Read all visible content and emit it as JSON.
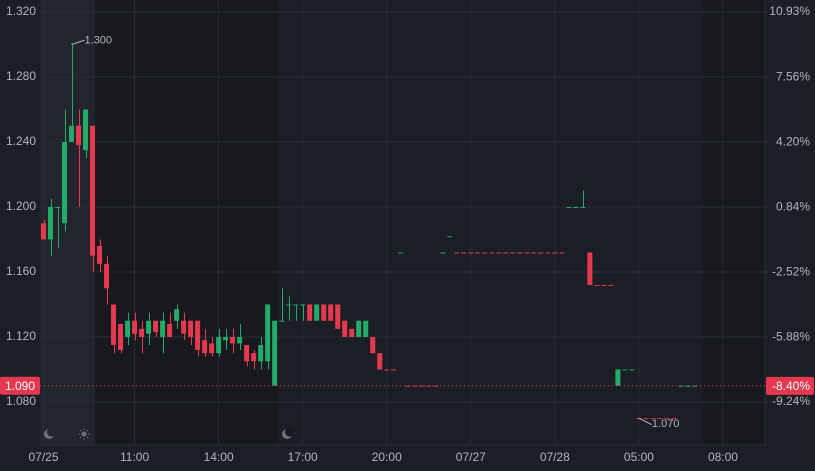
{
  "chart_data": {
    "type": "candlestick",
    "x": [
      0,
      1,
      2,
      3,
      4,
      5,
      6,
      7,
      8,
      9,
      10,
      11,
      12,
      13,
      14,
      15,
      16,
      17,
      18,
      19,
      20,
      21,
      22,
      23,
      24,
      25,
      26,
      27,
      28,
      29,
      30,
      31,
      32,
      33,
      34,
      35,
      36,
      37,
      38,
      39,
      40,
      41,
      42,
      43,
      44,
      45,
      46,
      47,
      48,
      49,
      50,
      51,
      52,
      53,
      54,
      55,
      56,
      57,
      58,
      59,
      60,
      61,
      62,
      63,
      64,
      65,
      66,
      67,
      68,
      69,
      70,
      71,
      72,
      73,
      74,
      75,
      76,
      77,
      78,
      79,
      80,
      81,
      82,
      83,
      84,
      85,
      86,
      87,
      88,
      89,
      90,
      91,
      92,
      93
    ],
    "open": [
      1.19,
      1.18,
      1.2,
      1.19,
      1.24,
      1.25,
      1.235,
      1.25,
      1.176,
      1.165,
      1.14,
      1.128,
      1.12,
      1.13,
      1.125,
      1.122,
      1.13,
      1.12,
      1.128,
      1.13,
      1.13,
      1.13,
      1.13,
      1.118,
      1.116,
      1.11,
      1.118,
      1.12,
      1.116,
      1.115,
      1.11,
      1.105,
      1.105,
      1.09,
      1.13,
      1.14,
      1.14,
      1.14,
      1.14,
      1.13,
      1.14,
      1.14,
      1.14,
      1.13,
      1.125,
      1.12,
      1.12,
      1.12,
      1.11,
      1.1,
      1.1,
      1.172,
      1.09,
      1.09,
      1.09,
      1.09,
      1.09,
      1.172,
      1.182,
      1.172,
      1.172,
      1.172,
      1.172,
      1.172,
      1.172,
      1.172,
      1.172,
      1.172,
      1.172,
      1.172,
      1.172,
      1.172,
      1.172,
      1.172,
      1.172,
      1.2,
      1.2,
      1.2,
      1.172,
      1.152,
      1.152,
      1.152,
      1.09,
      1.1,
      1.1,
      1.07,
      1.07,
      1.07,
      1.07,
      1.07,
      1.07,
      1.09,
      1.09,
      1.09
    ],
    "high": [
      1.192,
      1.205,
      1.2,
      1.26,
      1.3,
      1.26,
      1.26,
      1.25,
      1.18,
      1.17,
      1.14,
      1.128,
      1.135,
      1.135,
      1.13,
      1.135,
      1.13,
      1.135,
      1.135,
      1.14,
      1.135,
      1.13,
      1.13,
      1.125,
      1.12,
      1.125,
      1.125,
      1.125,
      1.128,
      1.115,
      1.112,
      1.12,
      1.14,
      1.13,
      1.15,
      1.145,
      1.14,
      1.14,
      1.14,
      1.14,
      1.14,
      1.14,
      1.14,
      1.13,
      1.125,
      1.13,
      1.13,
      1.12,
      1.11,
      1.1,
      1.1,
      1.172,
      1.09,
      1.09,
      1.09,
      1.09,
      1.09,
      1.172,
      1.182,
      1.172,
      1.172,
      1.172,
      1.172,
      1.172,
      1.172,
      1.172,
      1.172,
      1.172,
      1.172,
      1.172,
      1.172,
      1.172,
      1.172,
      1.172,
      1.172,
      1.2,
      1.2,
      1.21,
      1.172,
      1.152,
      1.152,
      1.152,
      1.1,
      1.1,
      1.1,
      1.07,
      1.07,
      1.07,
      1.07,
      1.07,
      1.07,
      1.09,
      1.09,
      1.09
    ],
    "low": [
      1.18,
      1.17,
      1.175,
      1.185,
      1.24,
      1.2,
      1.23,
      1.16,
      1.16,
      1.14,
      1.11,
      1.11,
      1.115,
      1.118,
      1.11,
      1.115,
      1.12,
      1.11,
      1.12,
      1.125,
      1.118,
      1.115,
      1.108,
      1.108,
      1.108,
      1.108,
      1.112,
      1.11,
      1.112,
      1.102,
      1.1,
      1.1,
      1.1,
      1.09,
      1.13,
      1.13,
      1.13,
      1.13,
      1.13,
      1.13,
      1.13,
      1.13,
      1.125,
      1.12,
      1.12,
      1.12,
      1.12,
      1.11,
      1.1,
      1.1,
      1.1,
      1.172,
      1.09,
      1.09,
      1.09,
      1.09,
      1.09,
      1.172,
      1.182,
      1.172,
      1.172,
      1.172,
      1.172,
      1.172,
      1.172,
      1.172,
      1.172,
      1.172,
      1.172,
      1.172,
      1.172,
      1.172,
      1.172,
      1.172,
      1.172,
      1.2,
      1.2,
      1.2,
      1.152,
      1.152,
      1.152,
      1.152,
      1.09,
      1.1,
      1.1,
      1.07,
      1.07,
      1.07,
      1.07,
      1.07,
      1.07,
      1.09,
      1.09,
      1.09
    ],
    "close": [
      1.18,
      1.2,
      1.2,
      1.24,
      1.25,
      1.238,
      1.26,
      1.17,
      1.165,
      1.15,
      1.115,
      1.112,
      1.13,
      1.122,
      1.12,
      1.13,
      1.123,
      1.13,
      1.12,
      1.137,
      1.122,
      1.12,
      1.112,
      1.11,
      1.11,
      1.12,
      1.12,
      1.116,
      1.12,
      1.105,
      1.105,
      1.115,
      1.14,
      1.13,
      1.13,
      1.14,
      1.14,
      1.14,
      1.13,
      1.14,
      1.13,
      1.13,
      1.125,
      1.12,
      1.12,
      1.13,
      1.13,
      1.11,
      1.1,
      1.1,
      1.1,
      1.172,
      1.09,
      1.09,
      1.09,
      1.09,
      1.09,
      1.172,
      1.182,
      1.172,
      1.172,
      1.172,
      1.172,
      1.172,
      1.172,
      1.172,
      1.172,
      1.172,
      1.172,
      1.172,
      1.172,
      1.172,
      1.172,
      1.172,
      1.172,
      1.2,
      1.2,
      1.2,
      1.152,
      1.152,
      1.152,
      1.152,
      1.1,
      1.1,
      1.1,
      1.07,
      1.07,
      1.07,
      1.07,
      1.07,
      1.07,
      1.09,
      1.09,
      1.09
    ],
    "colors": {
      "up": "#22ab6a",
      "down": "#e5394f"
    },
    "xlim": [
      -0.5,
      103
    ],
    "xticks": [
      {
        "value": 0,
        "label": "07/25"
      },
      {
        "value": 13,
        "label": "11:00"
      },
      {
        "value": 25,
        "label": "14:00"
      },
      {
        "value": 37,
        "label": "17:00"
      },
      {
        "value": 49,
        "label": "20:00"
      },
      {
        "value": 61,
        "label": "07/27"
      },
      {
        "value": 73,
        "label": "07/28"
      },
      {
        "value": 85,
        "label": "05:00"
      },
      {
        "value": 97,
        "label": "08:00"
      }
    ],
    "ylim": [
      1.0535,
      1.3274
    ],
    "yticks": [
      {
        "value": 1.32,
        "label": "1.320"
      },
      {
        "value": 1.28,
        "label": "1.280"
      },
      {
        "value": 1.24,
        "label": "1.240"
      },
      {
        "value": 1.2,
        "label": "1.200"
      },
      {
        "value": 1.16,
        "label": "1.160"
      },
      {
        "value": 1.12,
        "label": "1.120"
      },
      {
        "value": 1.08,
        "label": "1.080"
      }
    ],
    "y2lim": [
      -11.46,
      11.55
    ],
    "y2ticks": [
      {
        "value": 10.93,
        "label": "10.93%"
      },
      {
        "value": 7.56,
        "label": "7.56%"
      },
      {
        "value": 4.2,
        "label": "4.20%"
      },
      {
        "value": 0.84,
        "label": "0.84%"
      },
      {
        "value": -2.52,
        "label": "-2.52%"
      },
      {
        "value": -5.88,
        "label": "-5.88%"
      },
      {
        "value": -9.24,
        "label": "-9.24%"
      }
    ],
    "grid": true,
    "last_price": {
      "value": 1.09,
      "label": "1.090"
    },
    "last_change": {
      "value": -8.4,
      "label": "-8.40%"
    },
    "annotations": [
      {
        "x": 4,
        "y": 1.3,
        "label": "1.300"
      },
      {
        "x": 85,
        "y": 1.07,
        "label": "1.070"
      }
    ]
  }
}
